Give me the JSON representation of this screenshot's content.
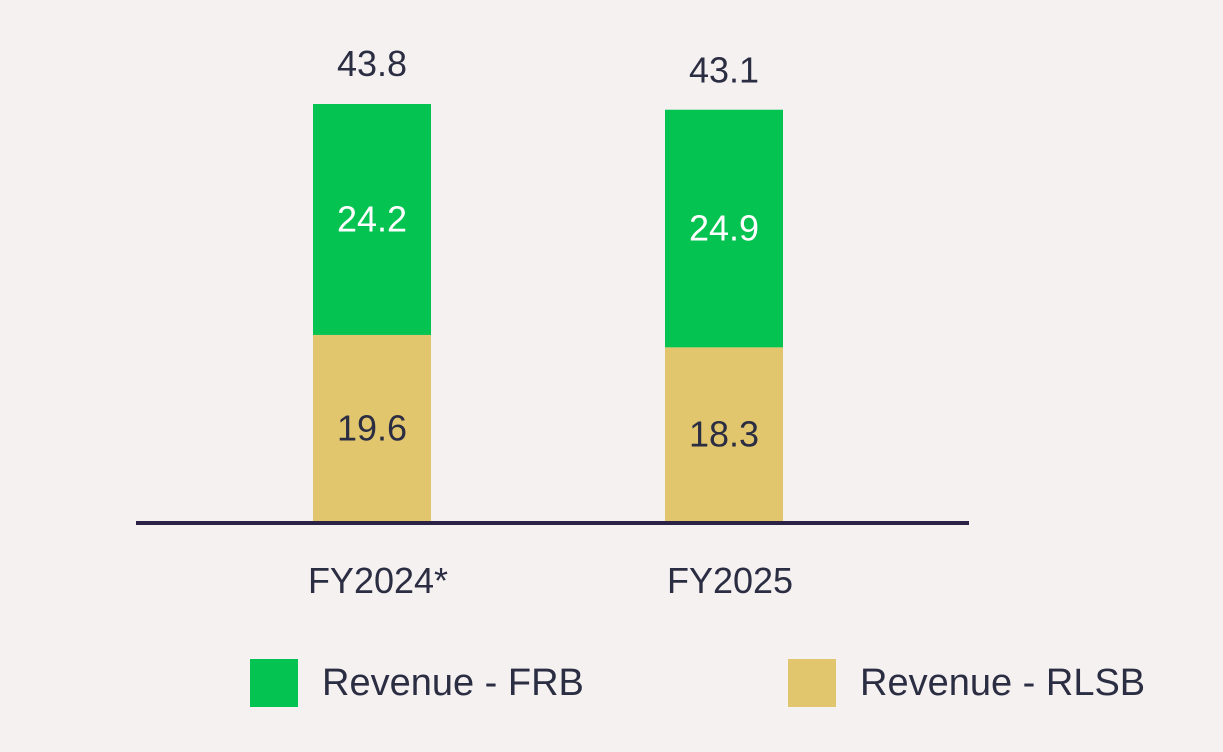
{
  "chart_data": {
    "type": "bar",
    "stacked": true,
    "categories": [
      "FY2024*",
      "FY2025"
    ],
    "series": [
      {
        "name": "Revenue - RLSB",
        "values": [
          19.6,
          18.3
        ],
        "color": "#e2c66d",
        "label_color": "#2b2d42"
      },
      {
        "name": "Revenue - FRB",
        "values": [
          24.2,
          24.9
        ],
        "color": "#04c350",
        "label_color": "#ffffff"
      }
    ],
    "totals": [
      43.8,
      43.1
    ],
    "title": "",
    "xlabel": "",
    "ylabel": "",
    "ylim": [
      0,
      43.8
    ],
    "grid": false,
    "legend_position": "bottom"
  },
  "colors": {
    "background": "#f5f1f0",
    "axis": "#2a2346",
    "text": "#2b2d42"
  }
}
